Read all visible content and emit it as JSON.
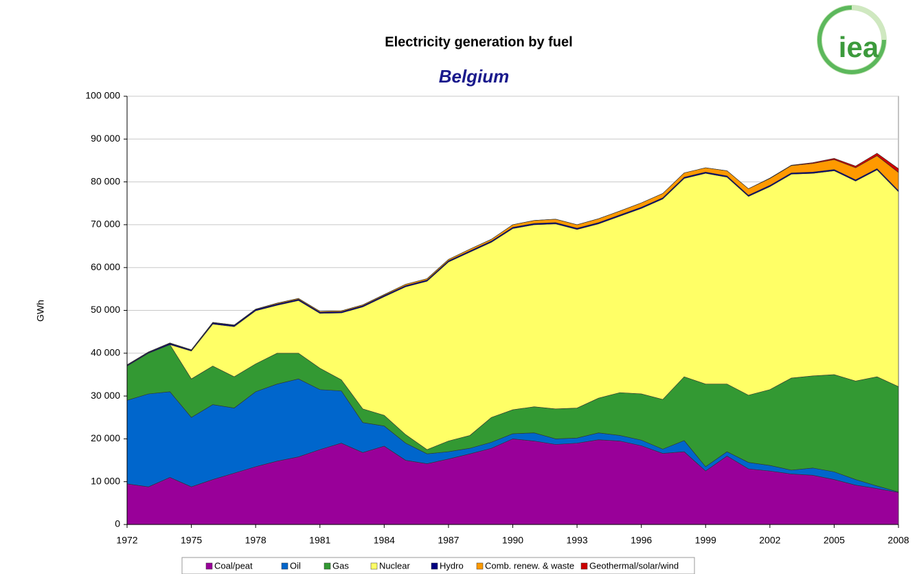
{
  "chart_data": {
    "type": "stacked_area",
    "title": "Electricity generation by fuel",
    "subtitle": "Belgium",
    "logo_text": "iea",
    "ylabel": "GWh",
    "x": [
      1972,
      1973,
      1974,
      1975,
      1976,
      1977,
      1978,
      1979,
      1980,
      1981,
      1982,
      1983,
      1984,
      1985,
      1986,
      1987,
      1988,
      1989,
      1990,
      1991,
      1992,
      1993,
      1994,
      1995,
      1996,
      1997,
      1998,
      1999,
      2000,
      2001,
      2002,
      2003,
      2004,
      2005,
      2006,
      2007,
      2008
    ],
    "xlim": [
      1972,
      2008
    ],
    "xticks": [
      1972,
      1975,
      1978,
      1981,
      1984,
      1987,
      1990,
      1993,
      1996,
      1999,
      2002,
      2005,
      2008
    ],
    "ylim": [
      0,
      100000
    ],
    "yticks": [
      0,
      {
        "value": 10000,
        "label": "10 000"
      },
      {
        "value": 20000,
        "label": "20 000"
      },
      {
        "value": 30000,
        "label": "30 000"
      },
      {
        "value": 40000,
        "label": "40 000"
      },
      {
        "value": 50000,
        "label": "50 000"
      },
      {
        "value": 60000,
        "label": "60 000"
      },
      {
        "value": 70000,
        "label": "70 000"
      },
      {
        "value": 80000,
        "label": "80 000"
      },
      {
        "value": 90000,
        "label": "90 000"
      },
      {
        "value": 100000,
        "label": "100 000"
      }
    ],
    "grid": true,
    "legend": "bottom",
    "series": [
      {
        "name": "Coal/peat",
        "color": "#990099",
        "values": [
          9500,
          8800,
          11000,
          8800,
          10500,
          12000,
          13500,
          14800,
          15800,
          17500,
          19000,
          16800,
          18300,
          15000,
          14200,
          15300,
          16500,
          17800,
          20000,
          19500,
          18700,
          19000,
          19800,
          19500,
          18400,
          16600,
          17000,
          12500,
          16000,
          13000,
          12500,
          11800,
          11500,
          10500,
          9200,
          8400,
          7500
        ]
      },
      {
        "name": "Oil",
        "color": "#0066cc",
        "values": [
          19500,
          21700,
          20000,
          16200,
          17500,
          15200,
          17500,
          18000,
          18200,
          14000,
          12200,
          7000,
          4700,
          4000,
          2300,
          1700,
          1300,
          1400,
          1200,
          1900,
          1300,
          1200,
          1600,
          1300,
          1300,
          1000,
          2600,
          1000,
          1000,
          1500,
          1300,
          900,
          1700,
          1800,
          1300,
          600,
          100
        ]
      },
      {
        "name": "Gas",
        "color": "#339933",
        "values": [
          8000,
          9500,
          11000,
          9000,
          9000,
          7300,
          6500,
          7200,
          6000,
          5000,
          2600,
          3200,
          2500,
          2000,
          1000,
          2500,
          3000,
          5800,
          5600,
          6100,
          7000,
          7000,
          8100,
          10000,
          10800,
          11600,
          14900,
          19300,
          15800,
          15700,
          17700,
          21500,
          21500,
          22700,
          23000,
          25500,
          24600
        ]
      },
      {
        "name": "Nuclear",
        "color": "#ffff66",
        "values": [
          0,
          0,
          0,
          6500,
          9800,
          11700,
          12400,
          11200,
          12300,
          12800,
          15600,
          23800,
          27700,
          34500,
          39300,
          41800,
          42800,
          40900,
          42300,
          42500,
          43200,
          41700,
          40700,
          41200,
          43300,
          46800,
          46300,
          49200,
          48300,
          46400,
          47400,
          47600,
          47300,
          47600,
          46700,
          48300,
          45500
        ]
      },
      {
        "name": "Hydro",
        "color": "#000080",
        "values": [
          200,
          200,
          300,
          200,
          300,
          300,
          300,
          300,
          300,
          300,
          300,
          300,
          300,
          300,
          300,
          300,
          300,
          300,
          300,
          300,
          300,
          300,
          300,
          300,
          300,
          300,
          300,
          300,
          300,
          300,
          300,
          300,
          300,
          300,
          300,
          300,
          300
        ]
      },
      {
        "name": "Comb. renew. & waste",
        "color": "#ff9900",
        "values": [
          100,
          100,
          100,
          100,
          100,
          100,
          100,
          200,
          200,
          200,
          200,
          200,
          200,
          300,
          300,
          300,
          400,
          400,
          600,
          700,
          800,
          800,
          900,
          900,
          1000,
          1000,
          1000,
          1000,
          1200,
          1500,
          1600,
          1700,
          2000,
          2300,
          2800,
          3000,
          4200
        ]
      },
      {
        "name": "Geothermal/solar/wind",
        "color": "#cc0000",
        "values": [
          0,
          0,
          0,
          0,
          0,
          0,
          0,
          0,
          0,
          0,
          0,
          0,
          0,
          0,
          0,
          0,
          0,
          0,
          0,
          0,
          0,
          0,
          0,
          0,
          0,
          0,
          0,
          0,
          0,
          0,
          100,
          100,
          200,
          300,
          400,
          600,
          900
        ]
      }
    ]
  }
}
